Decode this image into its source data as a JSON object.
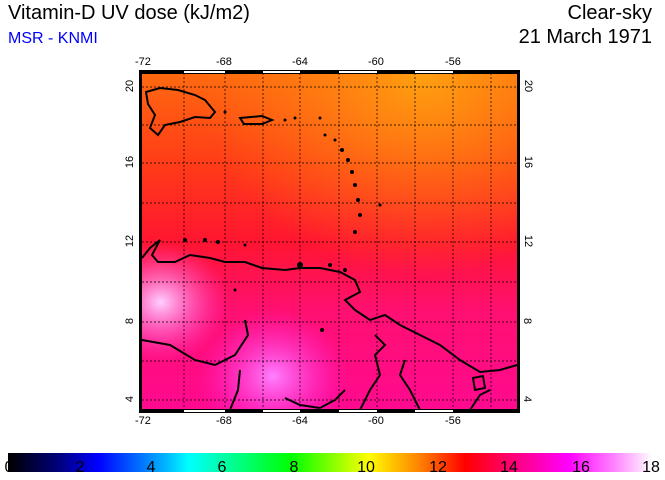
{
  "header": {
    "title": "Vitamin-D UV dose (kJ/m2)",
    "source": "MSR - KNMI",
    "sky": "Clear-sky",
    "date": "21 March 1971"
  },
  "map": {
    "lon_ticks": [
      "-72",
      "-68",
      "-64",
      "-60",
      "-56"
    ],
    "lat_ticks": [
      "20",
      "16",
      "12",
      "8",
      "4"
    ],
    "lon_range": [
      -72,
      -52.5
    ],
    "lat_range": [
      3.3,
      20.8
    ]
  },
  "colorbar": {
    "labels": [
      "0",
      "2",
      "4",
      "6",
      "8",
      "10",
      "12",
      "14",
      "16",
      "18"
    ],
    "min": 0,
    "max": 18,
    "colors": [
      "#000000",
      "#0000ff",
      "#00ffff",
      "#00ff00",
      "#ffff00",
      "#ff0000",
      "#ff00ff",
      "#ffffff"
    ]
  }
}
